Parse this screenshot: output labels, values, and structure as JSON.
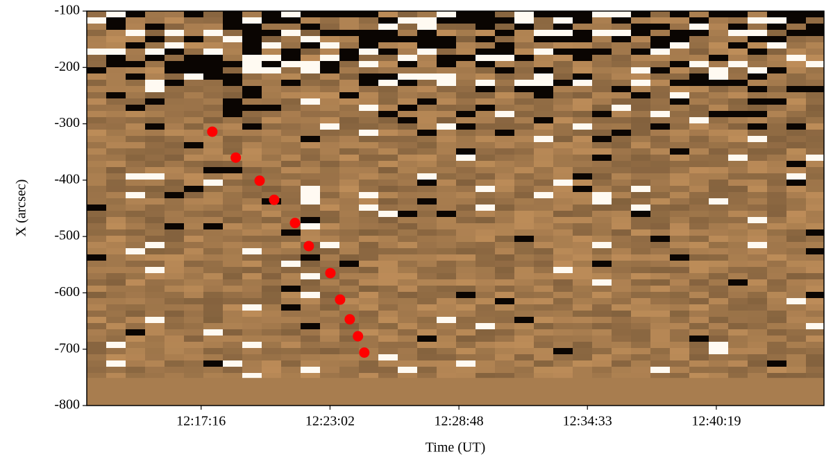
{
  "chart_data": {
    "type": "scatter",
    "xlabel": "Time (UT)",
    "ylabel": "X (arcsec)",
    "x": [
      44266,
      44329,
      44393,
      44432,
      44488,
      44525,
      44583,
      44609,
      44635,
      44657,
      44674
    ],
    "values": [
      -314,
      -360,
      -401,
      -435,
      -476,
      -517,
      -565,
      -612,
      -647,
      -677,
      -706
    ],
    "color": "#ff0000",
    "xlim": [
      43929,
      45908
    ],
    "xticks": [
      {
        "value": 44236,
        "label": "12:17:16"
      },
      {
        "value": 44582,
        "label": "12:23:02"
      },
      {
        "value": 44928,
        "label": "12:28:48"
      },
      {
        "value": 45273,
        "label": "12:34:33"
      },
      {
        "value": 45619,
        "label": "12:40:19"
      }
    ],
    "ylim": [
      -800,
      -100
    ],
    "yticks": [
      -800,
      -700,
      -600,
      -500,
      -400,
      -300,
      -200,
      -100
    ]
  }
}
